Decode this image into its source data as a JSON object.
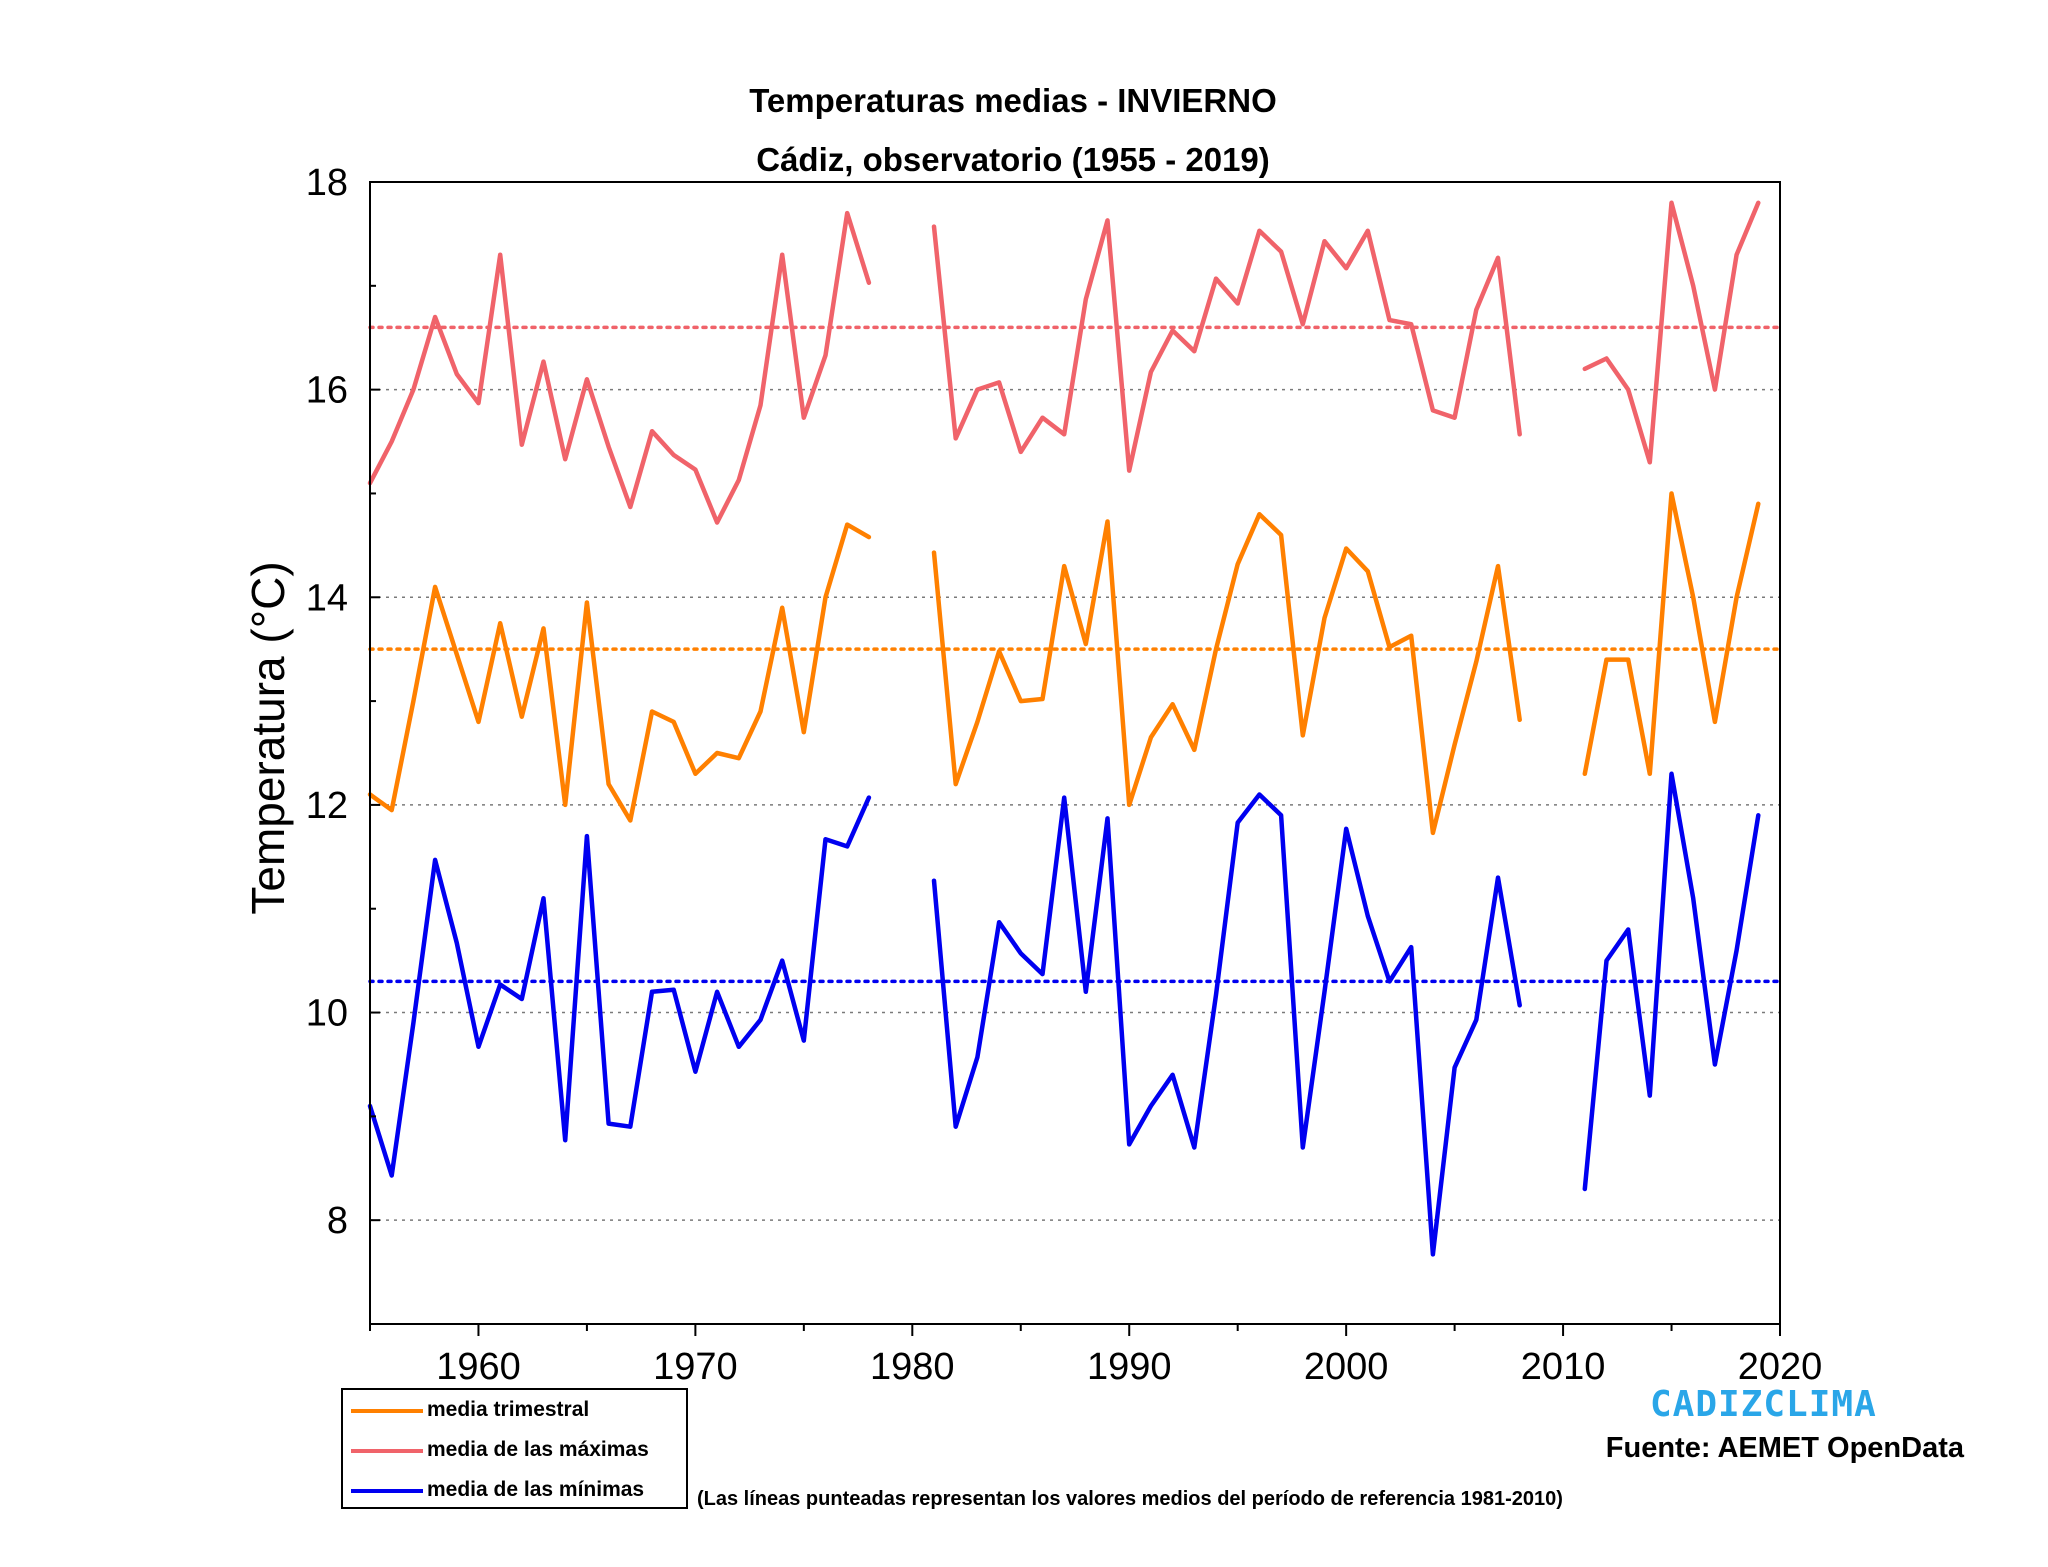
{
  "chart_data": {
    "type": "line",
    "title": "Temperaturas medias - INVIERNO",
    "subtitle": "Cádiz, observatorio (1955 - 2019)",
    "xlabel": "",
    "ylabel": "Temperatura (°C)",
    "xlim": [
      1955,
      2020
    ],
    "ylim": [
      7,
      18
    ],
    "x_ticks": [
      1960,
      1970,
      1980,
      1990,
      2000,
      2010,
      2020
    ],
    "y_ticks": [
      8,
      10,
      12,
      14,
      16,
      18
    ],
    "grid": true,
    "legend_position": "bottom-left",
    "x": [
      1955,
      1956,
      1957,
      1958,
      1959,
      1960,
      1961,
      1962,
      1963,
      1964,
      1965,
      1966,
      1967,
      1968,
      1969,
      1970,
      1971,
      1972,
      1973,
      1974,
      1975,
      1976,
      1977,
      1978,
      1979,
      1980,
      1981,
      1982,
      1983,
      1984,
      1985,
      1986,
      1987,
      1988,
      1989,
      1990,
      1991,
      1992,
      1993,
      1994,
      1995,
      1996,
      1997,
      1998,
      1999,
      2000,
      2001,
      2002,
      2003,
      2004,
      2005,
      2006,
      2007,
      2008,
      2009,
      2010,
      2011,
      2012,
      2013,
      2014,
      2015,
      2016,
      2017,
      2018,
      2019
    ],
    "series": [
      {
        "name": "media trimestral",
        "color": "#ff8000",
        "reference": 13.5,
        "values": [
          12.1,
          11.95,
          13.0,
          14.1,
          13.45,
          12.8,
          13.75,
          12.85,
          13.7,
          12.0,
          13.95,
          12.2,
          11.85,
          12.9,
          12.8,
          12.3,
          12.5,
          12.45,
          12.9,
          13.9,
          12.7,
          14.0,
          14.7,
          14.58,
          null,
          null,
          14.43,
          12.2,
          12.8,
          13.48,
          13.0,
          13.02,
          14.3,
          13.55,
          14.73,
          12.0,
          12.65,
          12.97,
          12.53,
          13.5,
          14.32,
          14.8,
          14.6,
          12.67,
          13.8,
          14.47,
          14.25,
          13.52,
          13.63,
          11.73,
          12.58,
          13.38,
          14.3,
          12.82,
          null,
          null,
          12.3,
          13.4,
          13.4,
          12.3,
          15.0,
          14.0,
          12.8,
          14.0,
          14.9
        ]
      },
      {
        "name": "media de las máximas",
        "color": "#f0636a",
        "reference": 16.6,
        "values": [
          15.1,
          15.5,
          16.0,
          16.7,
          16.15,
          15.87,
          17.3,
          15.47,
          16.27,
          15.33,
          16.1,
          15.45,
          14.87,
          15.6,
          15.37,
          15.23,
          14.72,
          15.13,
          15.85,
          17.3,
          15.73,
          16.33,
          17.7,
          17.03,
          null,
          null,
          17.57,
          15.53,
          16.0,
          16.07,
          15.4,
          15.73,
          15.57,
          16.87,
          17.63,
          15.22,
          16.17,
          16.57,
          16.37,
          17.07,
          16.83,
          17.53,
          17.33,
          16.63,
          17.43,
          17.17,
          17.53,
          16.67,
          16.63,
          15.8,
          15.73,
          16.77,
          17.27,
          15.57,
          null,
          null,
          16.2,
          16.3,
          16.0,
          15.3,
          17.8,
          17.0,
          16.0,
          17.3,
          17.8
        ]
      },
      {
        "name": "media de las mínimas",
        "color": "#0000f0",
        "reference": 10.3,
        "values": [
          9.1,
          8.43,
          9.9,
          11.47,
          10.67,
          9.67,
          10.27,
          10.13,
          11.1,
          8.77,
          11.7,
          8.93,
          8.9,
          10.2,
          10.22,
          9.43,
          10.2,
          9.67,
          9.93,
          10.5,
          9.73,
          11.67,
          11.6,
          12.07,
          null,
          null,
          11.27,
          8.9,
          9.57,
          10.87,
          10.57,
          10.37,
          12.07,
          10.2,
          11.87,
          8.73,
          9.1,
          9.4,
          8.7,
          10.17,
          11.83,
          12.1,
          11.9,
          8.7,
          10.2,
          11.77,
          10.93,
          10.3,
          10.63,
          7.67,
          9.47,
          9.93,
          11.3,
          10.07,
          null,
          null,
          8.3,
          10.5,
          10.8,
          9.2,
          12.3,
          11.1,
          9.5,
          10.6,
          11.9
        ]
      }
    ]
  },
  "legend": {
    "items": [
      {
        "label": "media trimestral",
        "color": "#ff8000"
      },
      {
        "label": "media de las máximas",
        "color": "#f0636a"
      },
      {
        "label": "media de las mínimas",
        "color": "#0000f0"
      }
    ]
  },
  "footer": {
    "brand": "CADIZCLIMA",
    "source": "Fuente: AEMET OpenData",
    "note": "(Las líneas punteadas representan los valores medios del período de referencia 1981-2010)"
  }
}
